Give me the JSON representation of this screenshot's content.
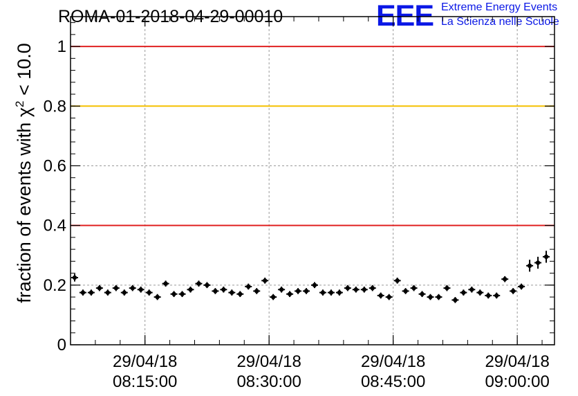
{
  "chart_data": {
    "type": "scatter",
    "title": "ROMA-01-2018-04-29-00010",
    "logo": {
      "mark": "EEE",
      "line1": "Extreme Energy Events",
      "line2": "La Scienza nelle Scuole"
    },
    "ylabel": {
      "before": "fraction of events with χ",
      "sup": "2",
      "after": " < 10.0"
    },
    "ylim": [
      0,
      1.1
    ],
    "xlim_minutes": [
      0,
      58.5
    ],
    "grid": true,
    "ytick_values": [
      0,
      0.2,
      0.4,
      0.6,
      0.8,
      1
    ],
    "yticks": [
      "0",
      "0.2",
      "0.4",
      "0.6",
      "0.8",
      "1"
    ],
    "xticks": [
      {
        "minute": 9,
        "date": "29/04/18",
        "time": "08:15:00"
      },
      {
        "minute": 24,
        "date": "29/04/18",
        "time": "08:30:00"
      },
      {
        "minute": 39,
        "date": "29/04/18",
        "time": "08:45:00"
      },
      {
        "minute": 54,
        "date": "29/04/18",
        "time": "09:00:00"
      }
    ],
    "reference_lines": [
      {
        "y": 1.0,
        "color": "#e02020"
      },
      {
        "y": 0.8,
        "color": "#f5c000"
      },
      {
        "y": 0.4,
        "color": "#e02020"
      }
    ],
    "series": [
      {
        "x_start_minute": 0.5,
        "x_step_minutes": 1.0,
        "values": [
          0.225,
          0.175,
          0.175,
          0.19,
          0.175,
          0.19,
          0.175,
          0.19,
          0.185,
          0.175,
          0.16,
          0.205,
          0.17,
          0.17,
          0.185,
          0.205,
          0.2,
          0.18,
          0.185,
          0.175,
          0.17,
          0.195,
          0.18,
          0.215,
          0.16,
          0.185,
          0.17,
          0.18,
          0.18,
          0.2,
          0.175,
          0.175,
          0.175,
          0.19,
          0.185,
          0.185,
          0.19,
          0.165,
          0.16,
          0.215,
          0.18,
          0.19,
          0.17,
          0.16,
          0.16,
          0.19,
          0.15,
          0.175,
          0.185,
          0.175,
          0.165,
          0.165,
          0.22,
          0.18,
          0.195,
          0.265,
          0.275,
          0.295
        ],
        "errors": [
          0.013,
          0.01,
          0.01,
          0.01,
          0.01,
          0.01,
          0.01,
          0.01,
          0.01,
          0.01,
          0.01,
          0.01,
          0.01,
          0.01,
          0.01,
          0.01,
          0.01,
          0.01,
          0.01,
          0.01,
          0.01,
          0.01,
          0.01,
          0.01,
          0.01,
          0.01,
          0.01,
          0.01,
          0.01,
          0.01,
          0.01,
          0.01,
          0.01,
          0.01,
          0.01,
          0.01,
          0.01,
          0.01,
          0.01,
          0.01,
          0.01,
          0.01,
          0.01,
          0.01,
          0.01,
          0.01,
          0.01,
          0.01,
          0.01,
          0.01,
          0.01,
          0.01,
          0.01,
          0.01,
          0.01,
          0.02,
          0.02,
          0.02
        ]
      }
    ]
  }
}
